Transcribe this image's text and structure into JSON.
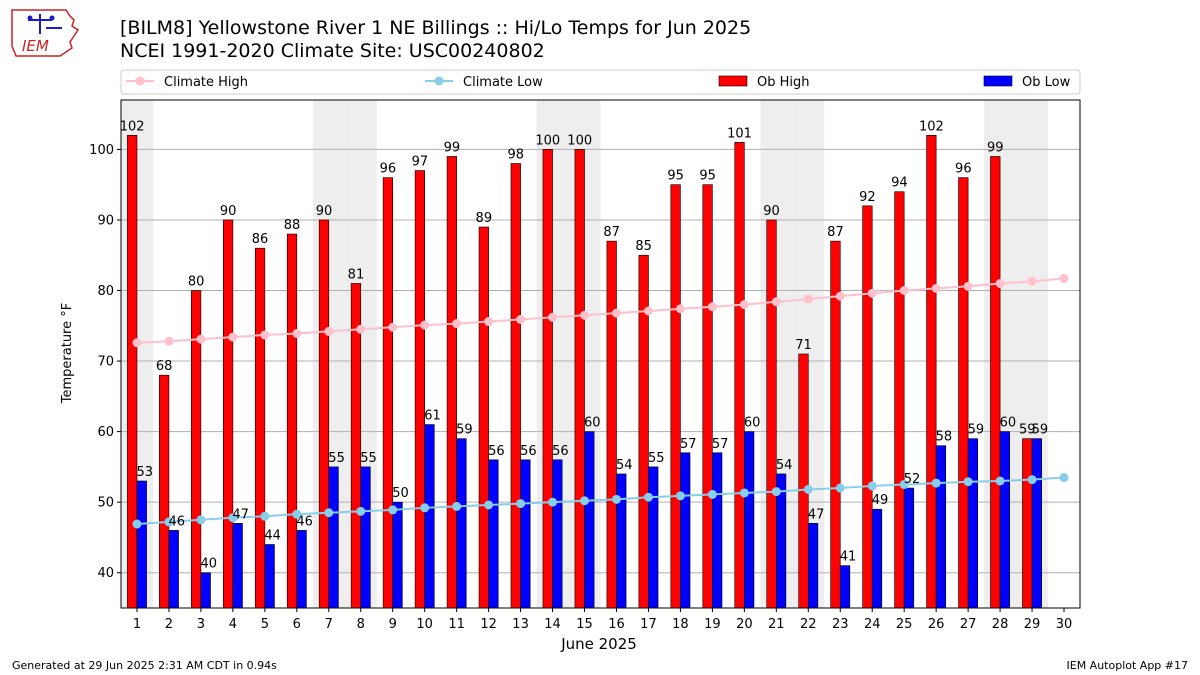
{
  "header": {
    "title_line1": "[BILM8] Yellowstone River 1 NE Billings :: Hi/Lo Temps for Jun 2025",
    "title_line2": "NCEI 1991-2020 Climate Site: USC00240802",
    "logo_text": "IEM"
  },
  "footer": {
    "generated": "Generated at 29 Jun 2025 2:31 AM CDT in 0.94s",
    "app": "IEM Autoplot App #17"
  },
  "colors": {
    "climate_high": "#ffc0cb",
    "climate_low": "#87ceeb",
    "ob_high": "#ff0000",
    "ob_low": "#0000ff",
    "weekend_shade": "#eeeeee",
    "grid": "#b0b0b0",
    "logo_red": "#cc2222",
    "logo_blue": "#1a1acc"
  },
  "chart_data": {
    "type": "bar",
    "xlabel": "June 2025",
    "ylabel": "Temperature °F",
    "xlim": [
      0.5,
      30.5
    ],
    "ylim": [
      35,
      107
    ],
    "yticks": [
      40,
      50,
      60,
      70,
      80,
      90,
      100
    ],
    "grid": "horizontal",
    "legend_placement": "top",
    "days": [
      1,
      2,
      3,
      4,
      5,
      6,
      7,
      8,
      9,
      10,
      11,
      12,
      13,
      14,
      15,
      16,
      17,
      18,
      19,
      20,
      21,
      22,
      23,
      24,
      25,
      26,
      27,
      28,
      29,
      30
    ],
    "shaded_days": [
      1,
      7,
      8,
      14,
      15,
      21,
      22,
      28,
      29
    ],
    "series": [
      {
        "name": "Climate High",
        "kind": "line",
        "values": [
          72.6,
          72.8,
          73.1,
          73.4,
          73.7,
          73.9,
          74.2,
          74.5,
          74.8,
          75.1,
          75.3,
          75.6,
          75.9,
          76.2,
          76.5,
          76.8,
          77.1,
          77.4,
          77.7,
          78.0,
          78.4,
          78.8,
          79.2,
          79.6,
          80.0,
          80.3,
          80.6,
          81.0,
          81.3,
          81.7
        ]
      },
      {
        "name": "Climate Low",
        "kind": "line",
        "values": [
          46.9,
          47.2,
          47.5,
          47.8,
          48.0,
          48.3,
          48.5,
          48.7,
          48.9,
          49.2,
          49.4,
          49.6,
          49.8,
          50.0,
          50.2,
          50.4,
          50.7,
          50.9,
          51.1,
          51.3,
          51.5,
          51.8,
          52.0,
          52.3,
          52.5,
          52.7,
          52.9,
          53.0,
          53.2,
          53.5
        ]
      },
      {
        "name": "Ob High",
        "kind": "bar",
        "values": [
          102,
          68,
          80,
          90,
          86,
          88,
          90,
          81,
          96,
          97,
          99,
          89,
          98,
          100,
          100,
          87,
          85,
          95,
          95,
          101,
          90,
          71,
          87,
          92,
          94,
          102,
          96,
          99,
          59,
          null
        ],
        "labels": [
          "102",
          "68",
          "80",
          "90",
          "86",
          "88",
          "90",
          "81",
          "96",
          "97",
          "99",
          "89",
          "98",
          "100",
          "100",
          "87",
          "85",
          "95",
          "95",
          "101",
          "90",
          "71",
          "87",
          "92",
          "94",
          "102",
          "96",
          "99",
          "59",
          ""
        ]
      },
      {
        "name": "Ob Low",
        "kind": "bar",
        "values": [
          53,
          46,
          40,
          47,
          44,
          46,
          55,
          55,
          50,
          61,
          59,
          56,
          56,
          56,
          60,
          54,
          55,
          57,
          57,
          60,
          54,
          47,
          41,
          49,
          52,
          58,
          59,
          60,
          59,
          null
        ],
        "labels": [
          "53",
          "46",
          "40",
          "47",
          "44",
          "46",
          "55",
          "55",
          "50",
          "61",
          "59",
          "56",
          "56",
          "56",
          "60",
          "54",
          "55",
          "57",
          "57",
          "60",
          "54",
          "47",
          "41",
          "49",
          "52",
          "58",
          "59",
          "60",
          "59",
          ""
        ]
      }
    ]
  }
}
